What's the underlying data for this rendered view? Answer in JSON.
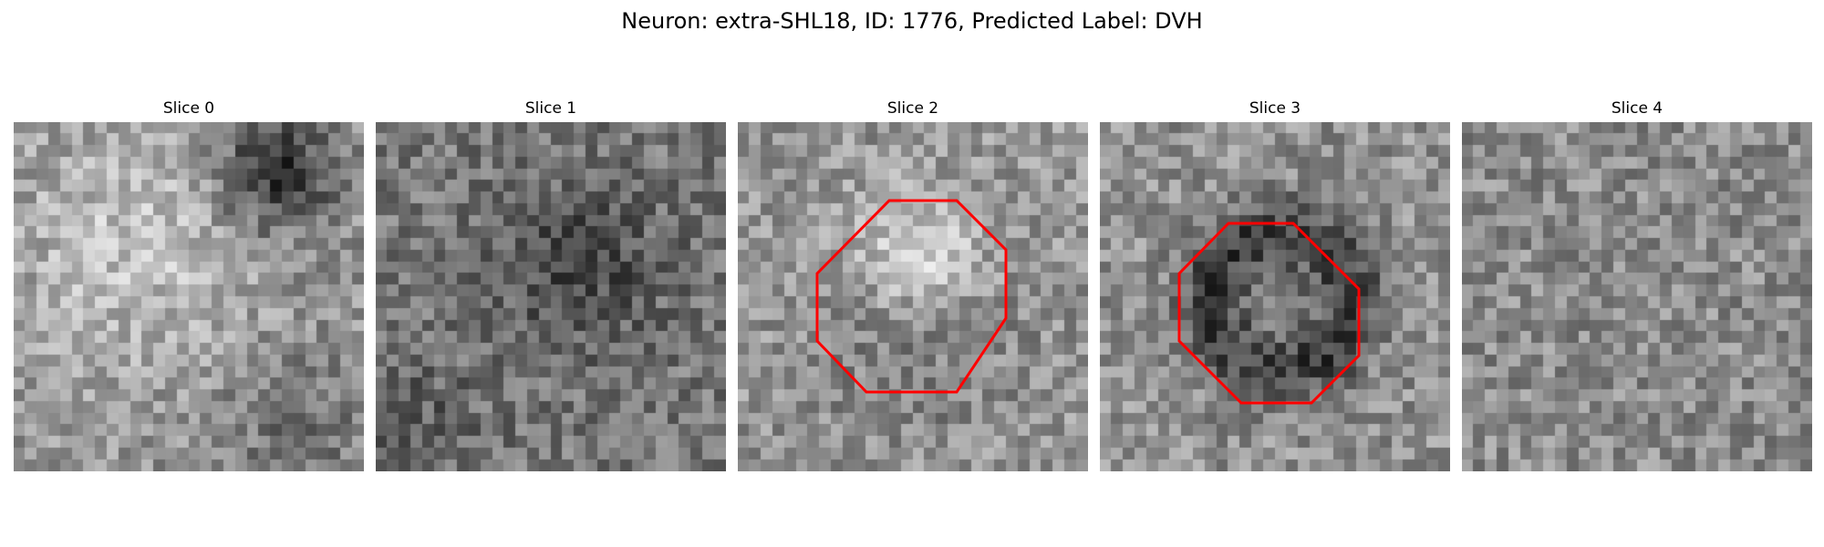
{
  "figure": {
    "title": "Neuron: extra-SHL18, ID: 1776, Predicted Label: DVH"
  },
  "slices": [
    {
      "title": "Slice 0",
      "content": "grayscale noise; bright left-center region, dark blob at upper right",
      "outline": false
    },
    {
      "title": "Slice 1",
      "content": "grayscale noise, darker overall with dark patch at center-right",
      "outline": false
    },
    {
      "title": "Slice 2",
      "content": "grayscale noise; bright cell body inside red octagon outline",
      "outline": true
    },
    {
      "title": "Slice 3",
      "content": "grayscale noise; dark ring inside red octagon outline",
      "outline": true
    },
    {
      "title": "Slice 4",
      "content": "uniform grayscale noise",
      "outline": false
    }
  ],
  "colors": {
    "outline": "#ff0000"
  }
}
